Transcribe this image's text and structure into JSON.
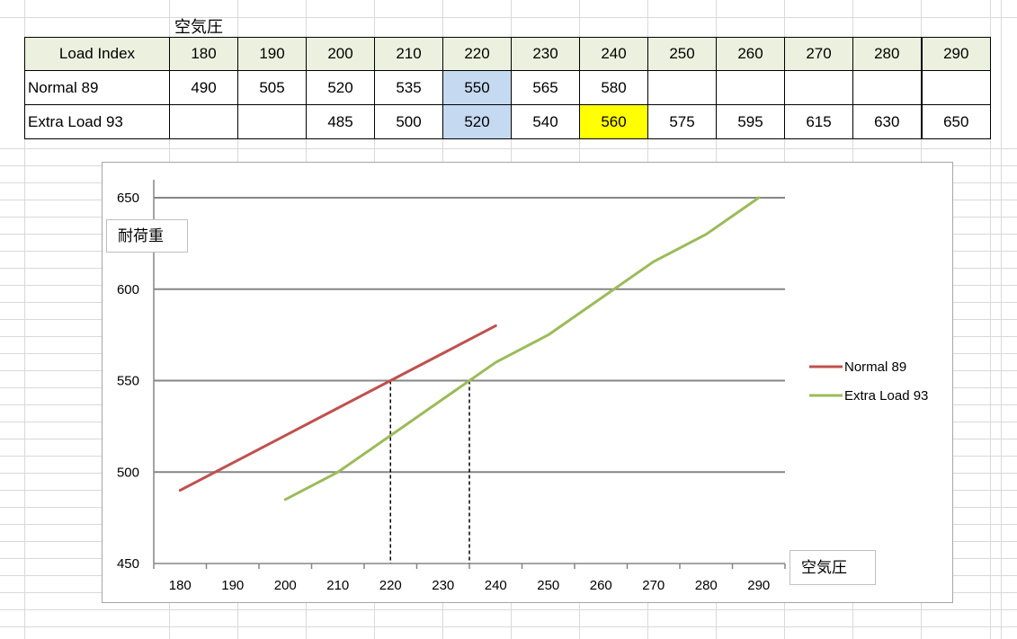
{
  "sheet": {
    "above_label": "空気圧",
    "table": {
      "header_label": "Load Index",
      "columns": [
        "180",
        "190",
        "200",
        "210",
        "220",
        "230",
        "240",
        "250",
        "260",
        "270",
        "280",
        "290"
      ],
      "rows": [
        {
          "label": "Normal 89",
          "cells": [
            "490",
            "505",
            "520",
            "535",
            "550",
            "565",
            "580",
            null,
            null,
            null,
            null,
            null
          ],
          "highlights": {
            "220": "#c5d9f1"
          }
        },
        {
          "label": "Extra Load 93",
          "cells": [
            null,
            null,
            "485",
            "500",
            "520",
            "540",
            "560",
            "575",
            "595",
            "615",
            "630",
            "650"
          ],
          "highlights": {
            "220": "#c5d9f1",
            "240": "#ffff00"
          }
        }
      ]
    },
    "colors": {
      "header_bg": "#ebf1de",
      "border": "#000000",
      "gridline": "#d9d9d9"
    }
  },
  "chart_data": {
    "type": "line",
    "categories": [
      "180",
      "190",
      "200",
      "210",
      "220",
      "230",
      "240",
      "250",
      "260",
      "270",
      "280",
      "290"
    ],
    "series": [
      {
        "name": "Normal 89",
        "values": [
          490,
          505,
          520,
          535,
          550,
          565,
          580,
          null,
          null,
          null,
          null,
          null
        ],
        "color": "#c0504d"
      },
      {
        "name": "Extra Load 93",
        "values": [
          null,
          null,
          485,
          500,
          520,
          540,
          560,
          575,
          595,
          615,
          630,
          650
        ],
        "color": "#9bbb59"
      }
    ],
    "xlabel": "空気圧",
    "ylabel": "耐荷重",
    "ylim": [
      450,
      650
    ],
    "yticks": [
      450,
      500,
      550,
      600,
      650
    ],
    "grid": true,
    "legend": "right",
    "annotations": [
      {
        "type": "dashed-vertical-line",
        "x": 220,
        "from_y": 550,
        "to_y": 450
      },
      {
        "type": "dashed-vertical-line",
        "x": 235,
        "from_y": 550,
        "to_y": 450
      }
    ],
    "colors": {
      "gridline": "#868686",
      "axis": "#868686",
      "annotation": "#000000",
      "border": "#a6a6a6"
    }
  }
}
